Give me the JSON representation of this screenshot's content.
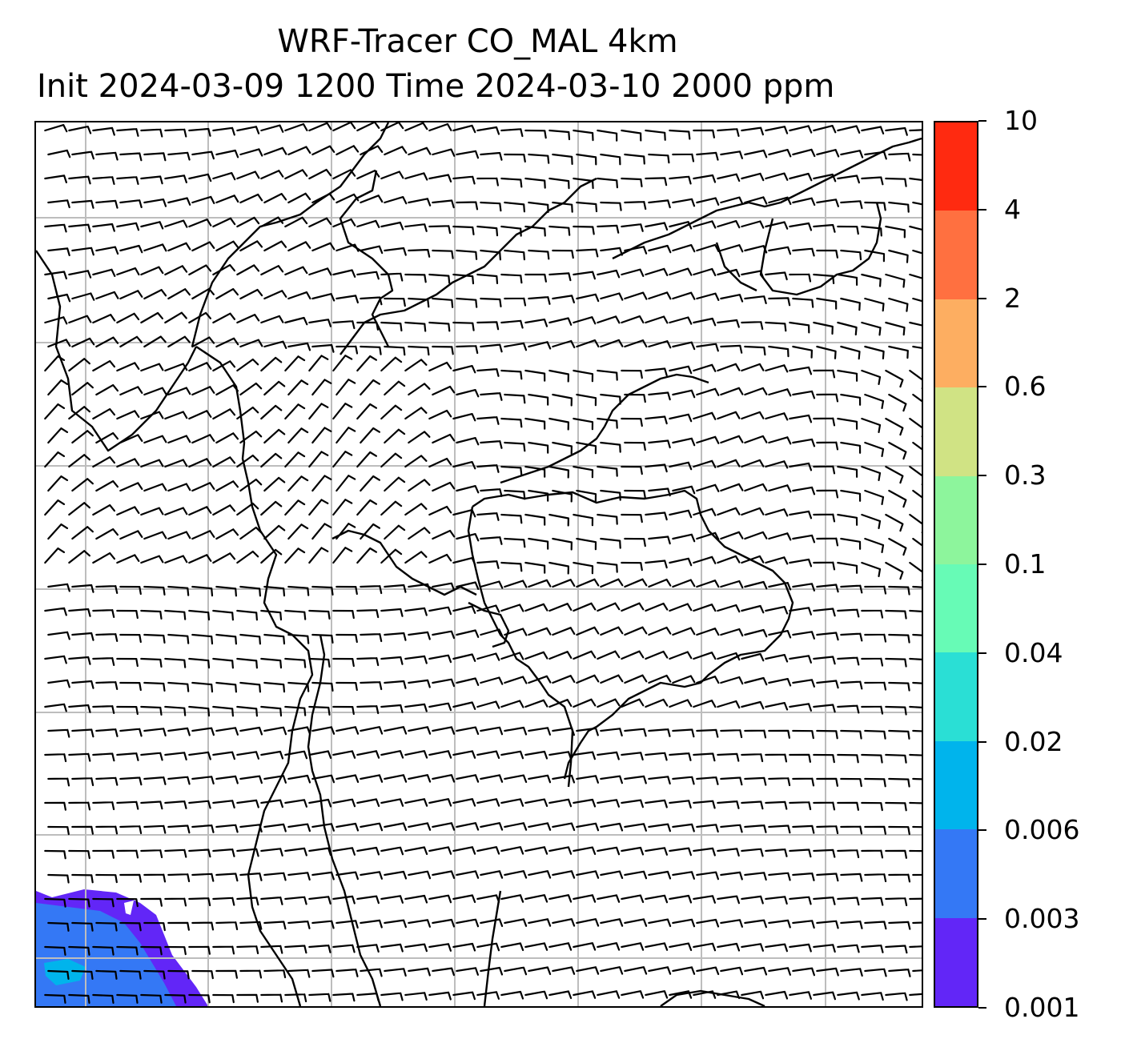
{
  "title": {
    "line1": "WRF-Tracer CO_MAL 4km",
    "line2": "Init 2024-03-09 1200 Time 2024-03-10 2000 ppm"
  },
  "map": {
    "layers": [
      "coastlines",
      "political-borders",
      "lat-lon-gridlines",
      "wind-barbs",
      "tracer-concentration-fill"
    ],
    "gridline_color": "#bdbdbd",
    "coastline_color": "#000000",
    "barb_color": "#000000",
    "calm_marker": "circle"
  },
  "colorbar": {
    "tick_labels": [
      "0.001",
      "0.003",
      "0.006",
      "0.02",
      "0.04",
      "0.1",
      "0.3",
      "0.6",
      "2",
      "4",
      "10"
    ],
    "colors": [
      "#6226f7",
      "#3478f5",
      "#00b4ec",
      "#2adfd5",
      "#67fbb6",
      "#8df59c",
      "#d0e384",
      "#fdae61",
      "#ff7040",
      "#ff2a10"
    ]
  }
}
